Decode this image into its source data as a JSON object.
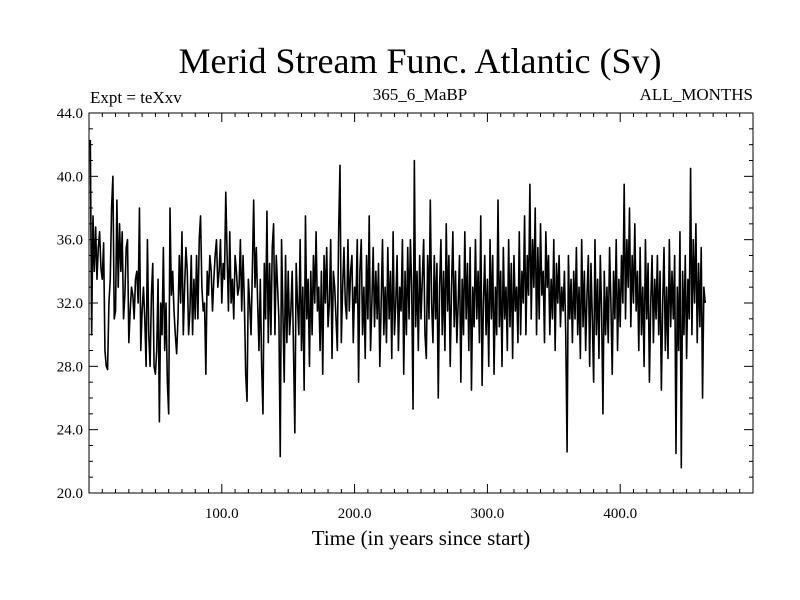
{
  "chart_data": {
    "type": "line",
    "title": "Merid Stream Func. Atlantic (Sv)",
    "subtitle_left": "Expt = teXxv",
    "subtitle_center": "365_6_MaBP",
    "subtitle_right": "ALL_MONTHS",
    "xlabel": "Time (in years since start)",
    "ylabel": "",
    "xlim": [
      0,
      500
    ],
    "ylim": [
      20.0,
      44.0
    ],
    "xticks": [
      100,
      200,
      300,
      400
    ],
    "xtick_labels": [
      "100.0",
      "200.0",
      "300.0",
      "400.0"
    ],
    "yticks": [
      20,
      24,
      28,
      32,
      36,
      40,
      44
    ],
    "ytick_labels": [
      "20.0",
      "24.0",
      "28.0",
      "32.0",
      "36.0",
      "40.0",
      "44.0"
    ],
    "grid": false,
    "series": [
      {
        "color": "#000000",
        "x_start": 1,
        "x_step": 1,
        "values": [
          42.3,
          30.0,
          37.5,
          34.0,
          36.8,
          33.5,
          35.5,
          36.5,
          34.2,
          33.5,
          35.8,
          29.0,
          28.0,
          27.8,
          32.0,
          33.5,
          38.0,
          40.0,
          31.0,
          31.5,
          38.5,
          33.0,
          37.0,
          34.0,
          36.5,
          31.0,
          32.5,
          35.5,
          36.0,
          29.5,
          31.5,
          33.0,
          32.5,
          31.0,
          33.5,
          34.0,
          32.0,
          38.0,
          29.0,
          31.5,
          33.0,
          31.0,
          28.0,
          36.0,
          30.0,
          28.0,
          32.5,
          34.5,
          28.0,
          27.5,
          29.0,
          33.5,
          24.5,
          32.0,
          30.0,
          35.5,
          29.0,
          32.0,
          27.0,
          25.0,
          38.0,
          32.5,
          34.0,
          31.5,
          30.0,
          28.8,
          31.0,
          35.0,
          32.0,
          36.5,
          30.0,
          33.0,
          35.5,
          34.0,
          30.0,
          31.5,
          35.0,
          30.0,
          33.5,
          31.0,
          35.0,
          31.0,
          36.0,
          37.5,
          33.0,
          31.5,
          32.0,
          27.5,
          34.0,
          32.5,
          35.0,
          34.0,
          31.5,
          33.5,
          35.0,
          36.0,
          33.0,
          34.0,
          36.0,
          32.0,
          34.5,
          33.5,
          39.0,
          35.0,
          31.5,
          36.5,
          32.0,
          33.5,
          31.0,
          35.0,
          34.0,
          32.5,
          33.0,
          36.0,
          31.5,
          35.0,
          32.0,
          27.5,
          25.8,
          33.5,
          32.0,
          30.0,
          34.0,
          38.5,
          33.0,
          35.5,
          32.0,
          29.0,
          33.5,
          28.0,
          25.0,
          34.5,
          31.0,
          37.8,
          29.5,
          34.5,
          30.0,
          35.5,
          37.0,
          30.0,
          35.0,
          33.0,
          31.0,
          22.3,
          36.0,
          31.5,
          27.0,
          35.0,
          29.5,
          34.0,
          30.0,
          31.5,
          34.0,
          29.0,
          23.8,
          34.5,
          32.0,
          30.0,
          36.0,
          29.0,
          33.0,
          26.5,
          37.5,
          31.0,
          33.5,
          28.0,
          34.0,
          30.0,
          35.0,
          32.0,
          36.5,
          31.5,
          33.0,
          29.0,
          34.0,
          27.5,
          35.0,
          32.0,
          35.5,
          30.5,
          32.0,
          36.0,
          28.5,
          34.0,
          33.0,
          31.0,
          29.0,
          36.5,
          40.7,
          29.5,
          33.0,
          35.5,
          32.0,
          31.0,
          36.0,
          31.5,
          34.0,
          35.0,
          29.5,
          33.0,
          32.0,
          36.0,
          27.0,
          34.0,
          36.0,
          30.0,
          33.0,
          28.5,
          35.0,
          31.0,
          37.5,
          29.0,
          32.0,
          35.5,
          30.5,
          34.0,
          31.0,
          34.5,
          28.0,
          32.0,
          36.0,
          30.0,
          33.0,
          29.5,
          35.5,
          31.0,
          34.0,
          28.5,
          36.5,
          30.0,
          32.0,
          35.0,
          29.0,
          33.0,
          31.5,
          36.0,
          27.5,
          34.0,
          30.0,
          35.5,
          31.0,
          36.0,
          33.0,
          25.3,
          41.0,
          30.5,
          34.0,
          29.0,
          35.0,
          31.0,
          33.5,
          36.0,
          30.0,
          28.5,
          35.0,
          31.0,
          38.5,
          32.0,
          29.5,
          35.0,
          31.0,
          34.5,
          26.0,
          33.0,
          36.0,
          30.0,
          34.0,
          29.0,
          37.0,
          31.5,
          35.0,
          28.0,
          33.0,
          36.5,
          30.5,
          34.0,
          29.5,
          32.0,
          35.0,
          27.0,
          33.5,
          30.0,
          36.5,
          31.0,
          34.5,
          29.0,
          35.5,
          26.5,
          33.0,
          30.5,
          36.0,
          31.0,
          34.0,
          29.5,
          37.5,
          26.8,
          32.0,
          35.0,
          30.0,
          33.5,
          28.0,
          36.0,
          31.0,
          35.0,
          27.5,
          33.0,
          30.0,
          38.5,
          30.5,
          34.0,
          28.0,
          35.5,
          31.0,
          33.0,
          29.0,
          36.0,
          30.5,
          34.5,
          28.5,
          35.0,
          31.5,
          33.0,
          29.5,
          36.5,
          30.0,
          34.0,
          32.0,
          37.5,
          30.0,
          35.0,
          32.5,
          39.5,
          31.0,
          36.0,
          33.0,
          38.0,
          30.0,
          35.5,
          31.0,
          37.0,
          32.5,
          34.0,
          29.5,
          36.5,
          33.0,
          35.0,
          30.0,
          33.5,
          31.0,
          36.0,
          29.0,
          34.5,
          32.0,
          35.0,
          30.5,
          33.0,
          31.5,
          34.0,
          30.0,
          22.6,
          35.0,
          31.0,
          33.5,
          29.5,
          34.0,
          31.0,
          35.5,
          30.0,
          33.0,
          28.5,
          36.0,
          30.5,
          34.0,
          29.0,
          32.5,
          35.0,
          28.0,
          34.5,
          31.0,
          27.0,
          36.0,
          30.0,
          33.5,
          28.5,
          35.0,
          31.5,
          25.0,
          34.0,
          30.0,
          33.0,
          29.5,
          35.5,
          32.0,
          27.5,
          34.0,
          31.0,
          36.0,
          29.0,
          33.5,
          30.5,
          35.0,
          32.0,
          39.5,
          31.0,
          36.0,
          33.0,
          38.0,
          30.5,
          35.0,
          32.0,
          37.0,
          31.5,
          34.0,
          29.0,
          35.5,
          30.0,
          33.0,
          28.0,
          36.0,
          31.0,
          34.5,
          27.0,
          32.0,
          35.0,
          29.5,
          33.5,
          31.0,
          35.0,
          30.0,
          34.0,
          26.5,
          32.0,
          35.5,
          29.0,
          33.0,
          28.5,
          36.0,
          30.5,
          34.0,
          31.0,
          35.0,
          22.5,
          33.0,
          29.0,
          36.5,
          21.6,
          34.0,
          30.0,
          35.0,
          28.5,
          33.5,
          31.0,
          40.5,
          30.0,
          36.0,
          32.0,
          37.0,
          29.5,
          34.5,
          30.5,
          35.5,
          26.0,
          33.0,
          32.0
        ]
      }
    ]
  }
}
